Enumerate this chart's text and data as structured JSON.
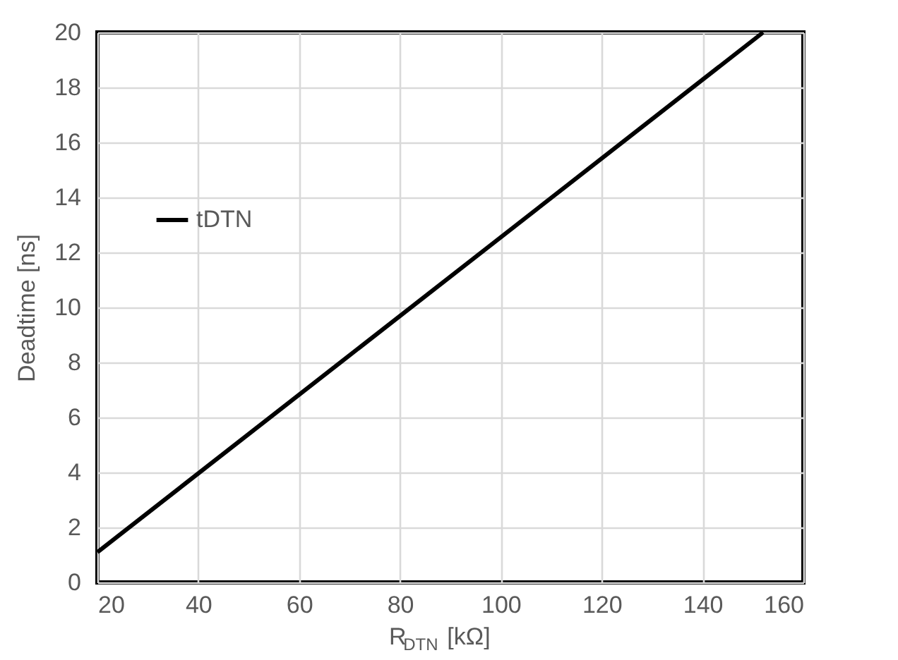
{
  "chart_data": {
    "type": "line",
    "xlabel": "R$_{DTN}$ [kΩ]",
    "ylabel": "Deadtime [ns]",
    "series": [
      {
        "name": "tDTN",
        "color": "#000000",
        "x": [
          20,
          152
        ],
        "values": [
          1.1,
          20
        ]
      }
    ],
    "xlim": [
      20,
      160
    ],
    "xticks": [
      20,
      40,
      60,
      80,
      100,
      120,
      140,
      160
    ],
    "ylim": [
      0,
      20
    ],
    "yticks": [
      0,
      2,
      4,
      6,
      8,
      10,
      12,
      14,
      16,
      18,
      20
    ],
    "grid": true,
    "legend": "top left",
    "marker": "none",
    "line_style": "solid"
  }
}
